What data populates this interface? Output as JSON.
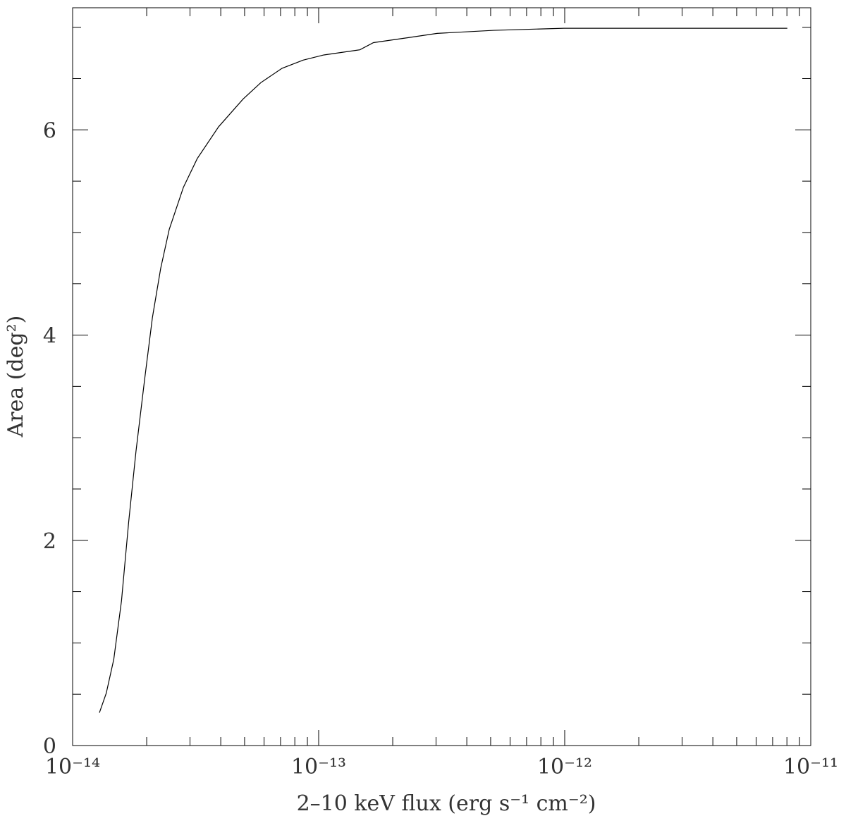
{
  "chart_data": {
    "type": "line",
    "x_label": "2–10 keV flux (erg s⁻¹ cm⁻²)",
    "y_label": "Area (deg²)",
    "x_scale": "log",
    "color": "#000000",
    "x": [
      1.285e-14,
      1.37e-14,
      1.47e-14,
      1.58e-14,
      1.69e-14,
      1.81e-14,
      1.96e-14,
      2.11e-14,
      2.28e-14,
      2.47e-14,
      2.82e-14,
      3.21e-14,
      3.92e-14,
      4.93e-14,
      5.82e-14,
      7.1e-14,
      8.65e-14,
      1.05e-13,
      1.47e-13,
      1.67e-13,
      2.33e-13,
      3.03e-13,
      5.14e-13,
      9.93e-13,
      8.03e-12
    ],
    "values": [
      0.32,
      0.51,
      0.84,
      1.41,
      2.18,
      2.87,
      3.56,
      4.17,
      4.65,
      5.03,
      5.44,
      5.72,
      6.03,
      6.3,
      6.46,
      6.6,
      6.68,
      6.73,
      6.78,
      6.85,
      6.9,
      6.94,
      6.97,
      6.99,
      6.99
    ],
    "xlim": [
      1e-14,
      1e-11
    ],
    "xticks": [
      {
        "value": 1e-14,
        "label": "10⁻¹⁴"
      },
      {
        "value": 1e-13,
        "label": "10⁻¹³"
      },
      {
        "value": 1e-12,
        "label": "10⁻¹²"
      },
      {
        "value": 1e-11,
        "label": "10⁻¹¹"
      }
    ],
    "x_minor_ticks": [
      2e-14,
      3e-14,
      4e-14,
      5e-14,
      6e-14,
      7e-14,
      8e-14,
      9e-14,
      2e-13,
      3e-13,
      4e-13,
      5e-13,
      6e-13,
      7e-13,
      8e-13,
      9e-13,
      2e-12,
      3e-12,
      4e-12,
      5e-12,
      6e-12,
      7e-12,
      8e-12,
      9e-12
    ],
    "ylim": [
      0,
      7.19
    ],
    "yticks": [
      0,
      2,
      4,
      6
    ],
    "y_minor_ticks": [
      0.5,
      1,
      1.5,
      2.5,
      3,
      3.5,
      4.5,
      5,
      5.5,
      6.5,
      7
    ]
  }
}
